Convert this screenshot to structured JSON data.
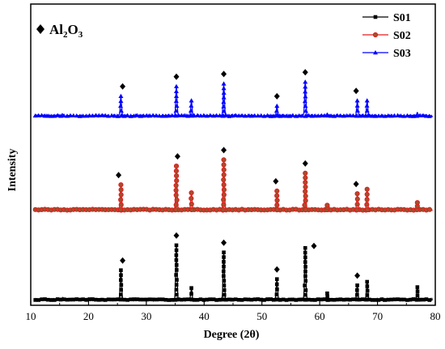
{
  "chart_data": {
    "type": "line",
    "title": "",
    "xlabel": "Degree (2θ)",
    "ylabel": "Intensity",
    "xlim": [
      10,
      80
    ],
    "x_ticks": [
      10,
      20,
      30,
      40,
      50,
      60,
      70,
      80
    ],
    "y_ticks_shown": false,
    "grid": false,
    "legend_position": "top-right",
    "annotation": {
      "marker": "diamond",
      "label_prefix": "Al",
      "label_sub1": "2",
      "label_mid": "O",
      "label_sub2": "3"
    },
    "series": [
      {
        "name": "S01",
        "color": "#000000",
        "marker": "square",
        "baseline": 0.0,
        "peaks": [
          {
            "x": 15.5,
            "h": 0.02
          },
          {
            "x": 25.6,
            "h": 0.33
          },
          {
            "x": 35.2,
            "h": 0.61
          },
          {
            "x": 37.8,
            "h": 0.13
          },
          {
            "x": 43.4,
            "h": 0.53
          },
          {
            "x": 52.6,
            "h": 0.23
          },
          {
            "x": 57.5,
            "h": 0.58
          },
          {
            "x": 61.3,
            "h": 0.07
          },
          {
            "x": 66.5,
            "h": 0.16
          },
          {
            "x": 68.2,
            "h": 0.2
          },
          {
            "x": 76.9,
            "h": 0.14
          }
        ]
      },
      {
        "name": "S02",
        "color": "#e41a1c",
        "marker": "circle",
        "baseline": 1.0,
        "peaks": [
          {
            "x": 15.5,
            "h": 0.01
          },
          {
            "x": 25.6,
            "h": 0.28
          },
          {
            "x": 35.2,
            "h": 0.49
          },
          {
            "x": 37.8,
            "h": 0.19
          },
          {
            "x": 43.4,
            "h": 0.56
          },
          {
            "x": 52.6,
            "h": 0.21
          },
          {
            "x": 57.5,
            "h": 0.41
          },
          {
            "x": 61.3,
            "h": 0.05
          },
          {
            "x": 66.5,
            "h": 0.18
          },
          {
            "x": 68.2,
            "h": 0.23
          },
          {
            "x": 76.9,
            "h": 0.08
          }
        ]
      },
      {
        "name": "S03",
        "color": "#0000ff",
        "marker": "triangle",
        "baseline": 2.0,
        "peaks": [
          {
            "x": 15.5,
            "h": 0.01
          },
          {
            "x": 25.6,
            "h": 0.22
          },
          {
            "x": 35.2,
            "h": 0.33
          },
          {
            "x": 37.8,
            "h": 0.17
          },
          {
            "x": 43.4,
            "h": 0.36
          },
          {
            "x": 52.6,
            "h": 0.11
          },
          {
            "x": 57.5,
            "h": 0.38
          },
          {
            "x": 61.3,
            "h": 0.03
          },
          {
            "x": 66.5,
            "h": 0.17
          },
          {
            "x": 68.2,
            "h": 0.17
          },
          {
            "x": 76.9,
            "h": 0.03
          }
        ]
      }
    ],
    "diamond_markers": [
      {
        "series": "S01",
        "x": 25.9
      },
      {
        "series": "S01",
        "x": 35.2
      },
      {
        "series": "S01",
        "x": 43.4
      },
      {
        "series": "S01",
        "x": 52.6
      },
      {
        "series": "S01",
        "x": 59.0
      },
      {
        "series": "S01",
        "x": 66.5
      },
      {
        "series": "S02",
        "x": 25.2
      },
      {
        "series": "S02",
        "x": 35.4
      },
      {
        "series": "S02",
        "x": 43.4
      },
      {
        "series": "S02",
        "x": 52.4
      },
      {
        "series": "S02",
        "x": 57.5
      },
      {
        "series": "S02",
        "x": 66.3
      },
      {
        "series": "S03",
        "x": 25.9
      },
      {
        "series": "S03",
        "x": 35.2
      },
      {
        "series": "S03",
        "x": 43.4
      },
      {
        "series": "S03",
        "x": 52.6
      },
      {
        "series": "S03",
        "x": 57.5
      },
      {
        "series": "S03",
        "x": 66.3
      }
    ]
  }
}
